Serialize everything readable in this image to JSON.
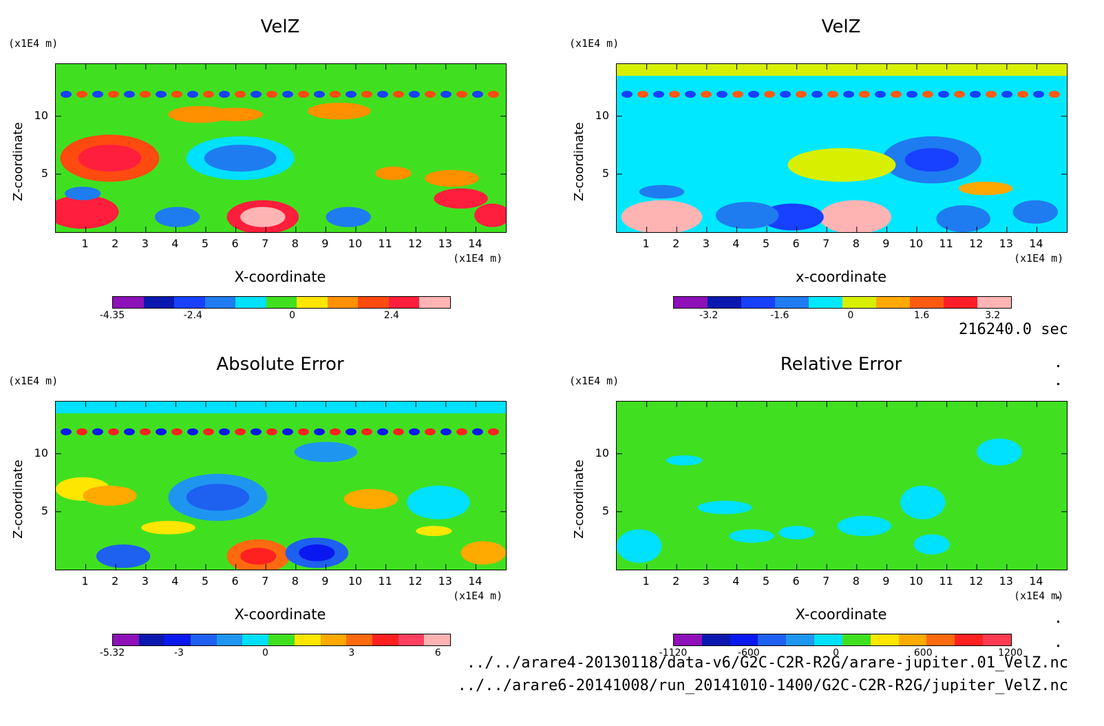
{
  "time_label": "216240.0 sec",
  "files": [
    "../../arare4-20130118/data-v6/G2C-C2R-R2G/arare-jupiter.01_VelZ.nc",
    "../../arare6-20141008/run_20141010-1400/G2C-C2R-R2G/jupiter_VelZ.nc"
  ],
  "axis_unit": "(x1E4 m)",
  "x_ticks": [
    "1",
    "2",
    "3",
    "4",
    "5",
    "6",
    "7",
    "8",
    "9",
    "10",
    "11",
    "12",
    "13",
    "14"
  ],
  "y_ticks": [
    "10",
    "5"
  ],
  "chart_data": [
    {
      "type": "heatmap",
      "title": "VelZ",
      "xlabel": "X-coordinate",
      "ylabel": "Z-coordinate",
      "xlim": [
        0,
        15
      ],
      "ylim": [
        0,
        14.5
      ],
      "colorbar": {
        "ticks": [
          "-4.35",
          "-2.4",
          "0",
          "2.4"
        ],
        "tick_values": [
          -4.35,
          -2.4,
          0,
          2.4
        ],
        "range": [
          -4.35,
          3.8
        ],
        "colors": [
          "#8d10b8",
          "#0a18b0",
          "#1840ff",
          "#1e7cf0",
          "#00e0ff",
          "#40e020",
          "#ffe600",
          "#ff9000",
          "#ff4a10",
          "#ff1e3c",
          "#ffb4b4"
        ]
      },
      "palette_bg": "#40e020"
    },
    {
      "type": "heatmap",
      "title": "VelZ",
      "xlabel": "x-coordinate",
      "ylabel": "Z-coordinate",
      "xlim": [
        0,
        15
      ],
      "ylim": [
        0,
        14.5
      ],
      "colorbar": {
        "ticks": [
          "-3.2",
          "-1.6",
          "0",
          "1.6",
          "3.2"
        ],
        "tick_values": [
          -3.2,
          -1.6,
          0,
          1.6,
          3.2
        ],
        "range": [
          -4.0,
          3.6
        ],
        "colors": [
          "#8d10b8",
          "#0a18b0",
          "#1840ff",
          "#1e7cf0",
          "#00e8ff",
          "#d8f000",
          "#ffa800",
          "#ff5a10",
          "#ff1e28",
          "#ffb4b4"
        ]
      },
      "palette_bg": "#00e8ff"
    },
    {
      "type": "heatmap",
      "title": "Absolute Error",
      "xlabel": "X-coordinate",
      "ylabel": "Z-coordinate",
      "xlim": [
        0,
        15
      ],
      "ylim": [
        0,
        14.5
      ],
      "colorbar": {
        "ticks": [
          "-5.32",
          "-3",
          "0",
          "3",
          "6"
        ],
        "tick_values": [
          -5.32,
          -3,
          0,
          3,
          6
        ],
        "range": [
          -5.32,
          6.4
        ],
        "colors": [
          "#8d10b8",
          "#0a18b0",
          "#0a18f0",
          "#1e60f0",
          "#1e96f0",
          "#00e0ff",
          "#40e020",
          "#ffe600",
          "#ffaa00",
          "#ff6a10",
          "#ff2020",
          "#ff4060",
          "#ffb4b4"
        ]
      },
      "palette_bg": "#40e020"
    },
    {
      "type": "heatmap",
      "title": "Relative Error",
      "xlabel": "X-coordinate",
      "ylabel": "Z-coordinate",
      "xlim": [
        0,
        15
      ],
      "ylim": [
        0,
        14.5
      ],
      "colorbar": {
        "ticks": [
          "-1120",
          "-600",
          "0",
          "600",
          "1200"
        ],
        "tick_values": [
          -1120,
          -600,
          0,
          600,
          1200
        ],
        "range": [
          -1120,
          1200
        ],
        "colors": [
          "#8d10b8",
          "#0a18b0",
          "#0a18f0",
          "#1e60f0",
          "#1e96f0",
          "#00e0ff",
          "#40e020",
          "#ffe600",
          "#ffaa00",
          "#ff6a10",
          "#ff2020",
          "#ff3a50"
        ]
      },
      "palette_bg": "#40e020"
    }
  ]
}
